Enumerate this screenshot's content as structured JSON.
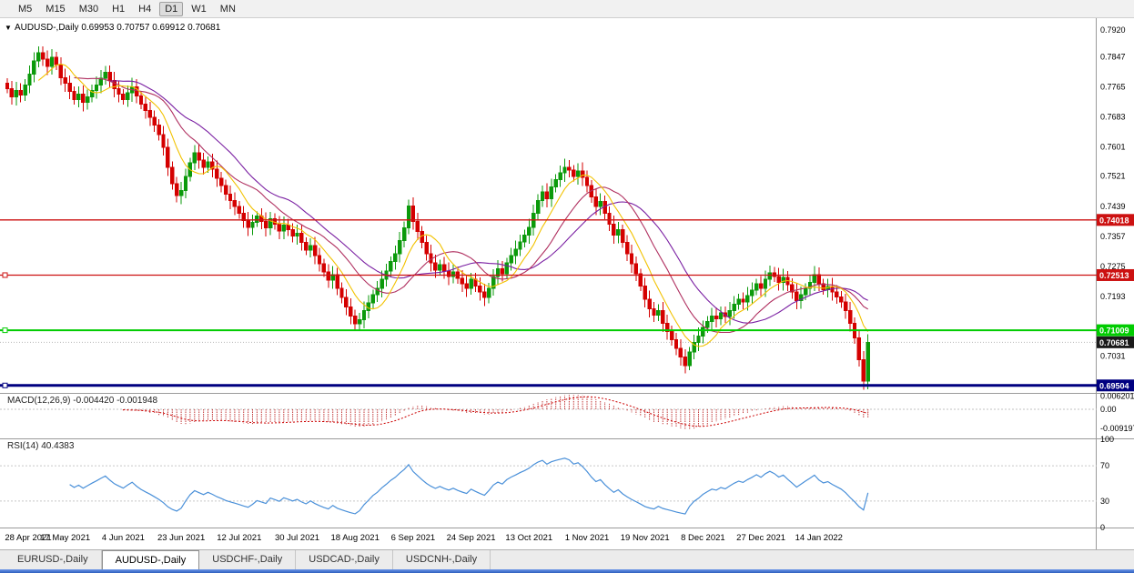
{
  "toolbar": {
    "timeframes": [
      {
        "label": "M5",
        "active": false
      },
      {
        "label": "M15",
        "active": false
      },
      {
        "label": "M30",
        "active": false
      },
      {
        "label": "H1",
        "active": false
      },
      {
        "label": "H4",
        "active": false
      },
      {
        "label": "D1",
        "active": true
      },
      {
        "label": "W1",
        "active": false
      },
      {
        "label": "MN",
        "active": false
      }
    ]
  },
  "chart": {
    "collapse_icon": "▼",
    "symbol": "AUDUSD-,Daily",
    "open": "0.69953",
    "high": "0.70757",
    "low": "0.69912",
    "close": "0.70681"
  },
  "current_price": {
    "label": "0.70681",
    "value": 0.70681
  },
  "axis": {
    "price_labels": [
      "0.7920",
      "0.7847",
      "0.7765",
      "0.7683",
      "0.7601",
      "0.7521",
      "0.7439",
      "0.7357",
      "0.7275",
      "0.7193",
      "0.7031"
    ]
  },
  "levels": [
    {
      "name": "resistance-line-upper",
      "label": "0.74018",
      "value": 0.74018,
      "color": "#cc1111",
      "width": 1.3,
      "handle": false
    },
    {
      "name": "resistance-line-lower",
      "label": "0.72513",
      "value": 0.72513,
      "color": "#cc1111",
      "width": 1.3,
      "handle": true
    },
    {
      "name": "support-line-green",
      "label": "0.71009",
      "value": 0.71009,
      "color": "#00cc00",
      "width": 2,
      "handle": true
    },
    {
      "name": "support-line-blue",
      "label": "0.69504",
      "value": 0.69504,
      "color": "#000080",
      "width": 3,
      "handle": true
    }
  ],
  "macd": {
    "label": "MACD(12,26,9)",
    "values_text": "-0.004420 -0.001948",
    "axis_labels": [
      "0.006201",
      "0.00",
      "-0.009197"
    ]
  },
  "rsi": {
    "label": "RSI(14)",
    "value_text": "40.4383",
    "axis_labels": [
      "100",
      "70",
      "30",
      "0"
    ]
  },
  "tabs": [
    {
      "label": "EURUSD-,Daily",
      "active": false
    },
    {
      "label": "AUDUSD-,Daily",
      "active": true
    },
    {
      "label": "USDCHF-,Daily",
      "active": false
    },
    {
      "label": "USDCAD-,Daily",
      "active": false
    },
    {
      "label": "USDCNH-,Daily",
      "active": false
    }
  ],
  "colors": {
    "candle_up": "#0b9a0b",
    "candle_down": "#d40000",
    "ma_fast": "#f2c200",
    "ma_mid": "#b03060",
    "ma_slow": "#7a1fa2",
    "macd": "#c23b3b",
    "macd_signal": "#cc0000",
    "rsi": "#4a90d9",
    "badge_current": "#1a1a1a"
  },
  "chart_data": {
    "type": "candlestick",
    "symbol": "AUDUSD",
    "timeframe": "Daily",
    "ohlc_current": {
      "open": 0.69953,
      "high": 0.70757,
      "low": 0.69912,
      "close": 0.70681
    },
    "ylim": [
      0.693,
      0.7952
    ],
    "overlays": {
      "sma_fast_period": 8,
      "sma_mid_period": 16,
      "sma_slow_period": 24
    },
    "indicators": {
      "macd": {
        "fast": 12,
        "slow": 26,
        "signal": 9,
        "current_macd": -0.00442,
        "current_signal": -0.001948
      },
      "rsi": {
        "period": 14,
        "current": 40.4383
      }
    },
    "date_tick_labels": [
      "28 Apr 2021",
      "17 May 2021",
      "4 Jun 2021",
      "23 Jun 2021",
      "12 Jul 2021",
      "30 Jul 2021",
      "18 Aug 2021",
      "6 Sep 2021",
      "24 Sep 2021",
      "13 Oct 2021",
      "1 Nov 2021",
      "19 Nov 2021",
      "8 Dec 2021",
      "27 Dec 2021",
      "14 Jan 2022"
    ],
    "date_tick_indices": [
      0,
      13,
      26,
      39,
      52,
      65,
      78,
      91,
      104,
      117,
      130,
      143,
      156,
      169,
      182
    ],
    "closes": [
      0.776,
      0.7738,
      0.7755,
      0.7742,
      0.777,
      0.78,
      0.7835,
      0.7858,
      0.784,
      0.782,
      0.7845,
      0.7825,
      0.779,
      0.7775,
      0.7752,
      0.773,
      0.7745,
      0.7722,
      0.7738,
      0.7755,
      0.777,
      0.7788,
      0.7805,
      0.7782,
      0.776,
      0.7745,
      0.773,
      0.7748,
      0.7765,
      0.774,
      0.7718,
      0.77,
      0.7682,
      0.766,
      0.7635,
      0.76,
      0.7545,
      0.75,
      0.7468,
      0.7482,
      0.752,
      0.7558,
      0.7585,
      0.7565,
      0.7545,
      0.756,
      0.754,
      0.7515,
      0.7495,
      0.7472,
      0.7455,
      0.7438,
      0.742,
      0.74,
      0.7382,
      0.7395,
      0.7412,
      0.7398,
      0.738,
      0.7405,
      0.739,
      0.7372,
      0.7388,
      0.7375,
      0.7358,
      0.7365,
      0.734,
      0.732,
      0.7332,
      0.7305,
      0.7282,
      0.726,
      0.7238,
      0.7252,
      0.7215,
      0.719,
      0.7165,
      0.714,
      0.7118,
      0.713,
      0.7155,
      0.7175,
      0.7198,
      0.7215,
      0.724,
      0.7262,
      0.7288,
      0.731,
      0.7345,
      0.738,
      0.744,
      0.7398,
      0.737,
      0.734,
      0.731,
      0.7285,
      0.7265,
      0.728,
      0.7262,
      0.7248,
      0.726,
      0.7242,
      0.7228,
      0.7215,
      0.724,
      0.7222,
      0.7205,
      0.719,
      0.7215,
      0.7248,
      0.7268,
      0.7255,
      0.7285,
      0.7305,
      0.7322,
      0.7342,
      0.736,
      0.7382,
      0.742,
      0.7455,
      0.7478,
      0.746,
      0.7492,
      0.7512,
      0.753,
      0.7545,
      0.7538,
      0.752,
      0.7535,
      0.7518,
      0.7495,
      0.7465,
      0.7438,
      0.7452,
      0.742,
      0.739,
      0.736,
      0.7375,
      0.734,
      0.731,
      0.7282,
      0.7255,
      0.7222,
      0.7185,
      0.716,
      0.7142,
      0.7155,
      0.712,
      0.7098,
      0.7075,
      0.7052,
      0.7028,
      0.7005,
      0.7042,
      0.7068,
      0.7085,
      0.7108,
      0.7125,
      0.714,
      0.7132,
      0.7148,
      0.7138,
      0.7155,
      0.7172,
      0.7185,
      0.7178,
      0.7195,
      0.721,
      0.7228,
      0.7215,
      0.724,
      0.7258,
      0.7248,
      0.7232,
      0.7245,
      0.7225,
      0.7205,
      0.7182,
      0.7198,
      0.7215,
      0.7232,
      0.7252,
      0.7228,
      0.7212,
      0.722,
      0.7205,
      0.7192,
      0.7178,
      0.7155,
      0.712,
      0.708,
      0.702,
      0.6962,
      0.70681
    ]
  }
}
